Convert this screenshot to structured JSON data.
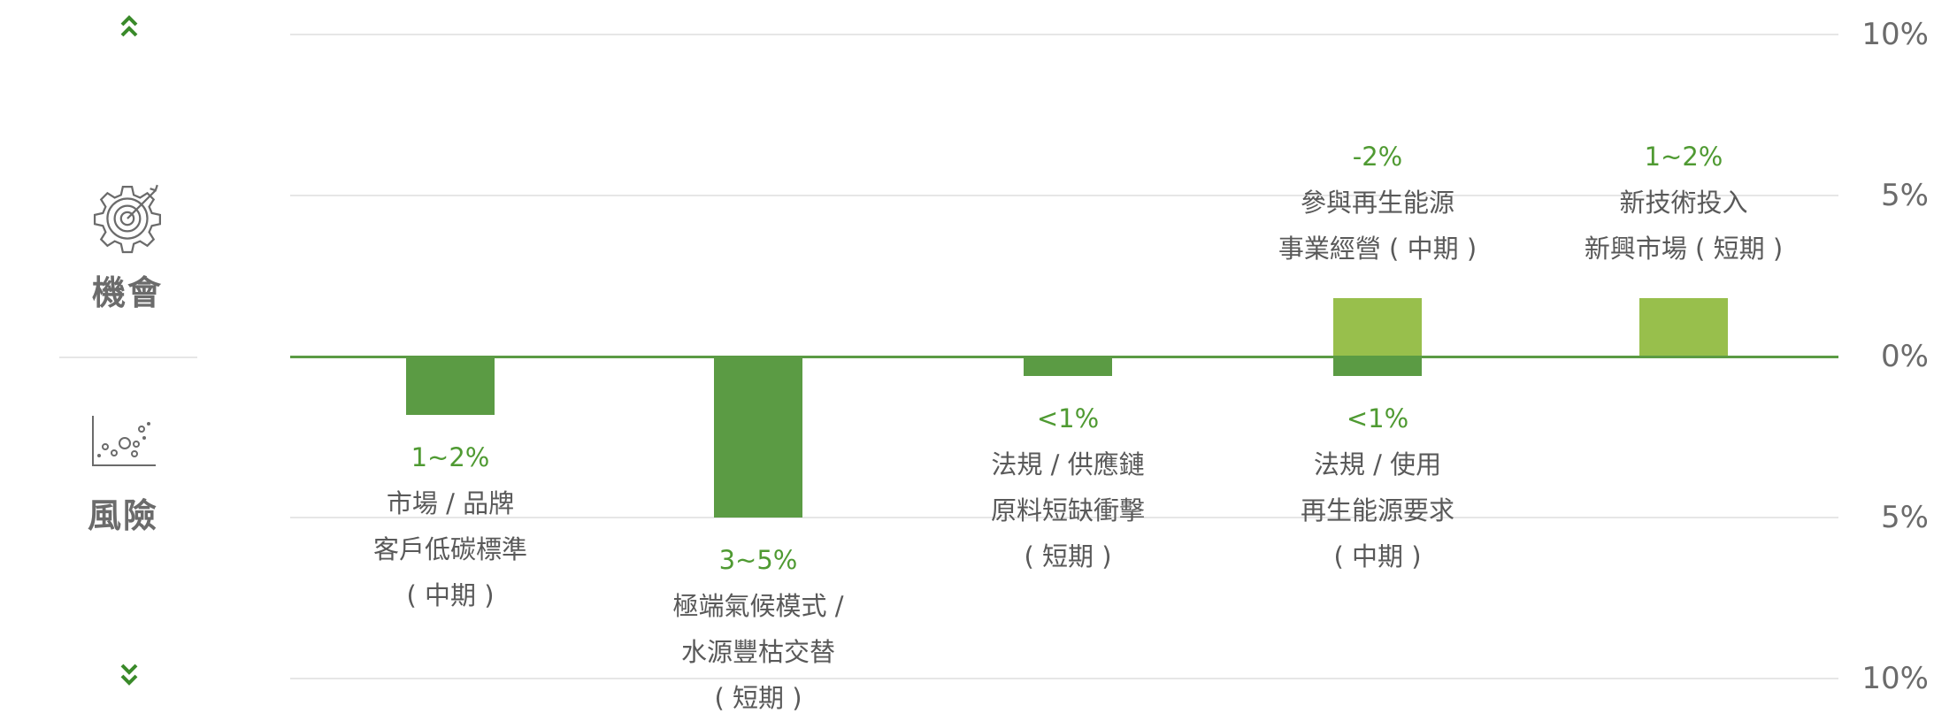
{
  "sidebar": {
    "opportunity_label": "機會",
    "risk_label": "風險",
    "scroll_up_icon": "double-chevron-up-icon",
    "scroll_down_icon": "double-chevron-down-icon",
    "opportunity_icon": "gear-target-icon",
    "risk_icon": "scatter-plot-icon"
  },
  "chart_data": {
    "type": "bar",
    "ylim": [
      -10,
      10
    ],
    "y_ticks": [
      {
        "value": 10,
        "label": "10%"
      },
      {
        "value": 5,
        "label": "5%"
      },
      {
        "value": 0,
        "label": "0%"
      },
      {
        "value": -5,
        "label": "5%"
      },
      {
        "value": -10,
        "label": "10%"
      }
    ],
    "grid": true,
    "colors": {
      "risk": "#5b9b44",
      "opportunity": "#98bf4c",
      "value_label": "#4f9a32",
      "text": "#595959"
    },
    "bars": [
      {
        "category": 0,
        "kind": "risk",
        "value": -1.8,
        "value_label": "1~2%",
        "lines": [
          "市場 / 品牌",
          "客戶低碳標準",
          "( 中期 )"
        ]
      },
      {
        "category": 1,
        "kind": "risk",
        "value": -5,
        "value_label": "3~5%",
        "lines": [
          "極端氣候模式 /",
          "水源豐枯交替",
          "( 短期 )"
        ]
      },
      {
        "category": 2,
        "kind": "risk",
        "value": -0.6,
        "value_label": "<1%",
        "lines": [
          "法規 / 供應鏈",
          "原料短缺衝擊",
          "( 短期 )"
        ]
      },
      {
        "category": 3,
        "kind": "risk",
        "value": -0.6,
        "value_label": "<1%",
        "lines": [
          "法規 / 使用",
          "再生能源要求",
          "( 中期 )"
        ]
      },
      {
        "category": 3,
        "kind": "opportunity",
        "value": 1.8,
        "value_label": "-2%",
        "lines": [
          "參與再生能源",
          "事業經營 ( 中期 )"
        ]
      },
      {
        "category": 4,
        "kind": "opportunity",
        "value": 1.8,
        "value_label": "1~2%",
        "lines": [
          "新技術投入",
          "新興市場 ( 短期 )"
        ]
      }
    ]
  }
}
